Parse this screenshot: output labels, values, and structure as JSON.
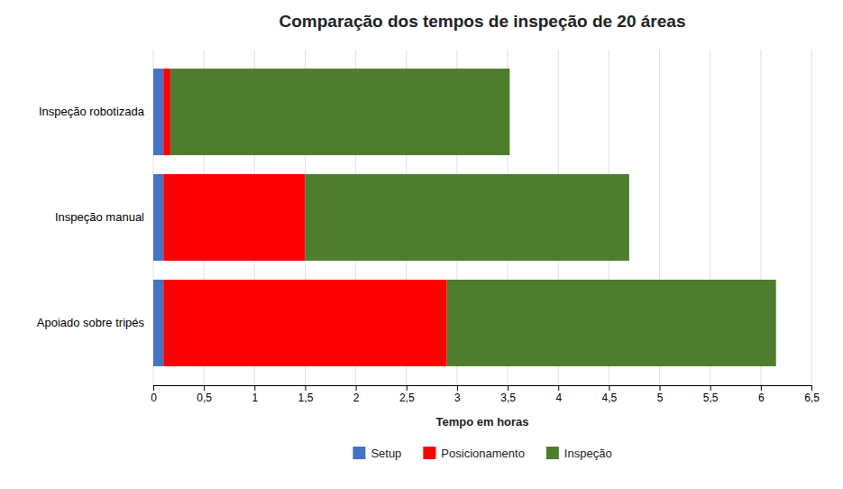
{
  "chart_data": {
    "type": "bar",
    "orientation": "horizontal",
    "stacked": true,
    "title": "Comparação dos tempos de inspeção de 20 áreas",
    "xlabel": "Tempo em horas",
    "categories": [
      "Apoiado sobre tripés",
      "Inspeção manual",
      "Inspeção robotizada"
    ],
    "series": [
      {
        "name": "Setup",
        "color": "#4472C4",
        "values": [
          0.1,
          0.1,
          0.1
        ]
      },
      {
        "name": "Posicionamento",
        "color": "#FF0000",
        "values": [
          2.8,
          1.4,
          0.07
        ]
      },
      {
        "name": "Inspeção",
        "color": "#4E7D2D",
        "values": [
          3.25,
          3.2,
          3.35
        ]
      }
    ],
    "xlim": [
      0,
      6.5
    ],
    "xticks": [
      0,
      {
        "value": 0.5,
        "label": "0,5"
      },
      1,
      {
        "value": 1.5,
        "label": "1,5"
      },
      2,
      {
        "value": 2.5,
        "label": "2,5"
      },
      3,
      {
        "value": 3.5,
        "label": "3,5"
      },
      4,
      {
        "value": 4.5,
        "label": "4,5"
      },
      5,
      {
        "value": 5.5,
        "label": "5,5"
      },
      6,
      {
        "value": 6.5,
        "label": "6,5"
      }
    ],
    "grid": true,
    "legend": "bottom"
  }
}
